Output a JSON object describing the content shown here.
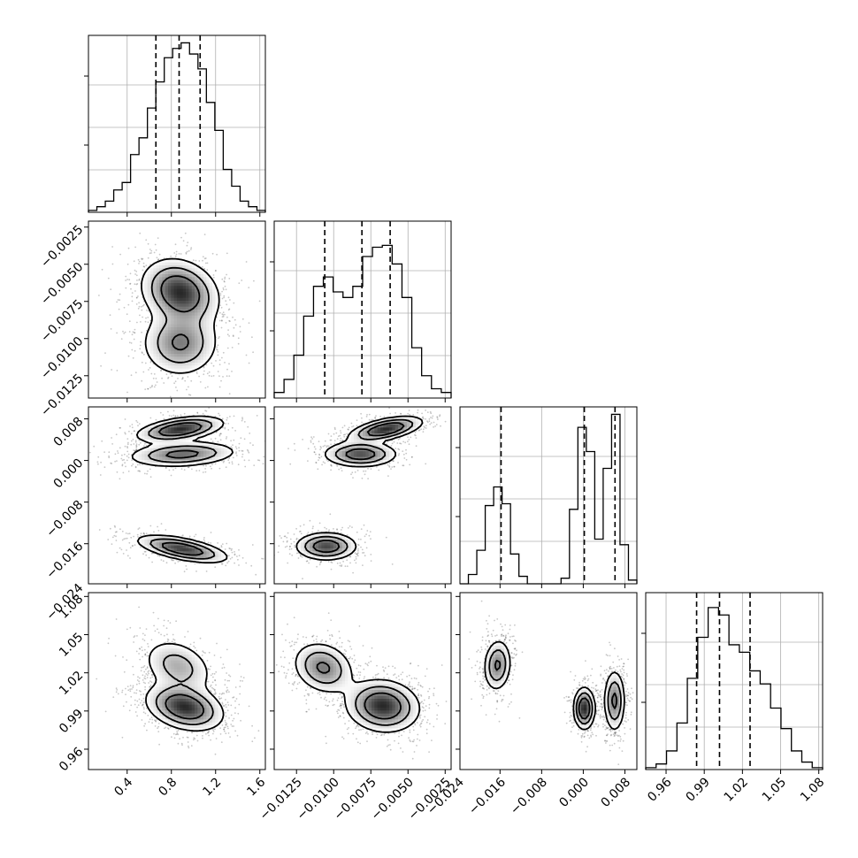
{
  "chart_data": {
    "type": "corner",
    "grid": true,
    "parameters": [
      {
        "id": "p0",
        "label": "",
        "range": [
          0.05,
          1.65
        ],
        "ticks": [
          0.4,
          0.8,
          1.2,
          1.6
        ],
        "tick_labels": [
          "0.4",
          "0.8",
          "1.2",
          "1.6"
        ],
        "quantiles": [
          0.66,
          0.87,
          1.06
        ]
      },
      {
        "id": "p1",
        "label": "",
        "range": [
          -0.014,
          -0.0021
        ],
        "ticks": [
          -0.0125,
          -0.01,
          -0.0075,
          -0.005,
          -0.0025
        ],
        "tick_labels": [
          "−0.0125",
          "−0.0100",
          "−0.0075",
          "−0.0050",
          "−0.0025"
        ],
        "quantiles": [
          -0.0106,
          -0.0081,
          -0.0062
        ]
      },
      {
        "id": "p2",
        "label": "",
        "range": [
          -0.0237,
          0.0103
        ],
        "ticks": [
          -0.024,
          -0.016,
          -0.008,
          0.0,
          0.008
        ],
        "tick_labels": [
          "−0.024",
          "−0.016",
          "−0.008",
          "0.000",
          "0.008"
        ],
        "quantiles": [
          -0.0158,
          0.0002,
          0.0061
        ]
      },
      {
        "id": "p3",
        "label": "",
        "range": [
          0.944,
          1.083
        ],
        "ticks": [
          0.96,
          0.99,
          1.02,
          1.05,
          1.08
        ],
        "tick_labels": [
          "0.96",
          "0.99",
          "1.02",
          "1.05",
          "1.08"
        ],
        "quantiles": [
          0.984,
          1.002,
          1.026
        ]
      }
    ],
    "histograms": [
      {
        "param": 0,
        "counts": [
          0.01,
          0.03,
          0.06,
          0.12,
          0.16,
          0.31,
          0.4,
          0.56,
          0.7,
          0.83,
          0.88,
          0.91,
          0.85,
          0.77,
          0.59,
          0.44,
          0.23,
          0.14,
          0.06,
          0.03,
          0.01
        ]
      },
      {
        "param": 1,
        "counts": [
          0.03,
          0.1,
          0.23,
          0.44,
          0.6,
          0.65,
          0.57,
          0.54,
          0.6,
          0.76,
          0.81,
          0.82,
          0.72,
          0.54,
          0.27,
          0.12,
          0.05,
          0.03
        ]
      },
      {
        "param": 2,
        "counts": [
          0.0,
          0.05,
          0.18,
          0.42,
          0.52,
          0.43,
          0.16,
          0.04,
          0.0,
          0.0,
          0.0,
          0.0,
          0.03,
          0.4,
          0.84,
          0.71,
          0.24,
          0.62,
          0.91,
          0.21,
          0.02
        ]
      },
      {
        "param": 3,
        "counts": [
          0.01,
          0.03,
          0.1,
          0.25,
          0.49,
          0.71,
          0.87,
          0.83,
          0.67,
          0.63,
          0.53,
          0.46,
          0.33,
          0.22,
          0.1,
          0.04,
          0.01
        ]
      }
    ],
    "joint_modes": [
      {
        "x": 0,
        "y": 1,
        "modes": [
          {
            "cx": 0.88,
            "cy": -0.0069,
            "sx": 0.17,
            "sy": 0.0011,
            "r": -0.2,
            "w": 0.6
          },
          {
            "cx": 0.88,
            "cy": -0.0103,
            "sx": 0.17,
            "sy": 0.0011,
            "r": 0.0,
            "w": 0.4
          }
        ]
      },
      {
        "x": 0,
        "y": 2,
        "modes": [
          {
            "cx": 0.88,
            "cy": 0.006,
            "sx": 0.19,
            "sy": 0.0012,
            "r": 0.45,
            "w": 0.34
          },
          {
            "cx": 0.9,
            "cy": 0.0012,
            "sx": 0.24,
            "sy": 0.0012,
            "r": 0.2,
            "w": 0.34
          },
          {
            "cx": 0.9,
            "cy": -0.017,
            "sx": 0.2,
            "sy": 0.0013,
            "r": -0.6,
            "w": 0.32
          }
        ]
      },
      {
        "x": 1,
        "y": 2,
        "modes": [
          {
            "cx": -0.0065,
            "cy": 0.006,
            "sx": 0.0012,
            "sy": 0.0012,
            "r": 0.55,
            "w": 0.34
          },
          {
            "cx": -0.0082,
            "cy": 0.0012,
            "sx": 0.0012,
            "sy": 0.0012,
            "r": 0.0,
            "w": 0.34
          },
          {
            "cx": -0.0105,
            "cy": -0.0165,
            "sx": 0.001,
            "sy": 0.0013,
            "r": 0.0,
            "w": 0.32
          }
        ]
      },
      {
        "x": 0,
        "y": 3,
        "modes": [
          {
            "cx": 0.86,
            "cy": 1.025,
            "sx": 0.16,
            "sy": 0.011,
            "r": -0.3,
            "w": 0.34
          },
          {
            "cx": 0.92,
            "cy": 0.993,
            "sx": 0.17,
            "sy": 0.009,
            "r": -0.3,
            "w": 0.66
          }
        ]
      },
      {
        "x": 1,
        "y": 3,
        "modes": [
          {
            "cx": -0.0107,
            "cy": 1.024,
            "sx": 0.001,
            "sy": 0.01,
            "r": -0.2,
            "w": 0.35
          },
          {
            "cx": -0.0067,
            "cy": 0.994,
            "sx": 0.0012,
            "sy": 0.01,
            "r": -0.1,
            "w": 0.65
          }
        ]
      },
      {
        "x": 2,
        "y": 3,
        "modes": [
          {
            "cx": -0.0165,
            "cy": 1.026,
            "sx": 0.0013,
            "sy": 0.01,
            "r": 0.1,
            "w": 0.34
          },
          {
            "cx": 0.0002,
            "cy": 0.992,
            "sx": 0.001,
            "sy": 0.008,
            "r": 0.0,
            "w": 0.33
          },
          {
            "cx": 0.006,
            "cy": 0.998,
            "sx": 0.001,
            "sy": 0.012,
            "r": 0.0,
            "w": 0.33
          }
        ]
      }
    ]
  }
}
